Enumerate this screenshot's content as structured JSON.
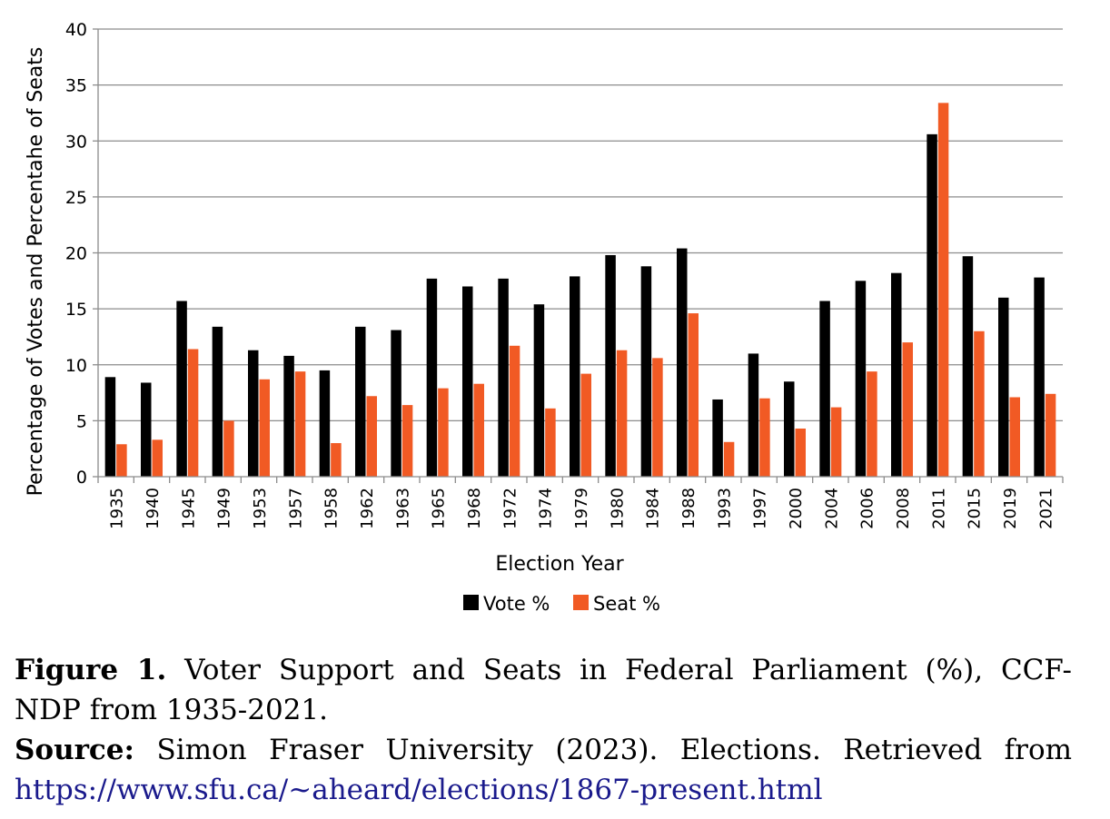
{
  "chart_data": {
    "type": "bar",
    "title": "",
    "xlabel": "Election Year",
    "ylabel": "Percentage of Votes and Percentahe of Seats",
    "ylim": [
      0,
      40
    ],
    "yticks": [
      0,
      5,
      10,
      15,
      20,
      25,
      30,
      35,
      40
    ],
    "grid": true,
    "legend_position": "bottom",
    "categories": [
      "1935",
      "1940",
      "1945",
      "1949",
      "1953",
      "1957",
      "1958",
      "1962",
      "1963",
      "1965",
      "1968",
      "1972",
      "1974",
      "1979",
      "1980",
      "1984",
      "1988",
      "1993",
      "1997",
      "2000",
      "2004",
      "2006",
      "2008",
      "2011",
      "2015",
      "2019",
      "2021"
    ],
    "series": [
      {
        "name": "Vote %",
        "color": "#000000",
        "values": [
          8.9,
          8.4,
          15.7,
          13.4,
          11.3,
          10.8,
          9.5,
          13.4,
          13.1,
          17.7,
          17.0,
          17.7,
          15.4,
          17.9,
          19.8,
          18.8,
          20.4,
          6.9,
          11.0,
          8.5,
          15.7,
          17.5,
          18.2,
          30.6,
          19.7,
          16.0,
          17.8
        ]
      },
      {
        "name": "Seat %",
        "color": "#f15a24",
        "values": [
          2.9,
          3.3,
          11.4,
          5.0,
          8.7,
          9.4,
          3.0,
          7.2,
          6.4,
          7.9,
          8.3,
          11.7,
          6.1,
          9.2,
          11.3,
          10.6,
          14.6,
          3.1,
          7.0,
          4.3,
          6.2,
          9.4,
          12.0,
          33.4,
          13.0,
          7.1,
          7.4
        ]
      }
    ]
  },
  "caption": {
    "figure_label": "Figure 1.",
    "figure_text_line1": "Voter Support and Seats in Federal Parliament (%), CCF-",
    "figure_text_line2": "NDP from 1935-2021.",
    "source_label": "Source:",
    "source_text": "Simon Fraser University (2023). Elections. Retrieved from",
    "source_url": "https://www.sfu.ca/~aheard/elections/1867-present.html"
  }
}
